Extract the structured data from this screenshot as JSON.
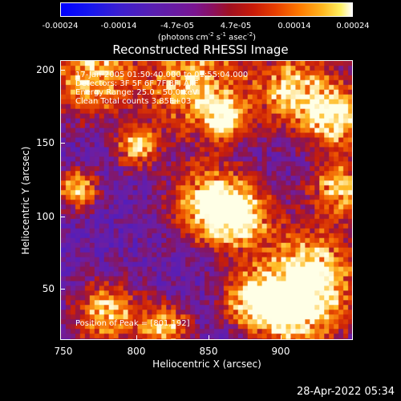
{
  "colorbar": {
    "ticks": [
      "-0.00024",
      "-0.00014",
      "-4.7e-05",
      "4.7e-05",
      "0.00014",
      "0.00024"
    ],
    "units_text": "(photons cm",
    "units_sup1": "-2",
    "units_mid1": " s",
    "units_sup2": "-1",
    "units_mid2": " asec",
    "units_sup3": "-2",
    "units_end": ")"
  },
  "plot": {
    "title": "Reconstructed RHESSI Image",
    "annotations": {
      "time_range": "17-Jan-2005 01:50:40.000 to 01:55:04.000",
      "detectors": "Detectors: 3F 5F 6F 7F 8F, AIIF",
      "energy_range": "Energy Range: 25.0 - 50.0 keV",
      "clean_info": "Clean     Total counts 3.85E+03",
      "peak_position": "Position of Peak = [801,192]"
    },
    "x_axis": {
      "label": "Heliocentric X (arcsec)",
      "ticks": [
        "750",
        "800",
        "850",
        "900"
      ],
      "range": [
        748,
        940
      ]
    },
    "y_axis": {
      "label": "Heliocentric Y (arcsec)",
      "ticks": [
        "50",
        "100",
        "150",
        "200"
      ],
      "range": [
        13,
        205
      ]
    }
  },
  "timestamp": "28-Apr-2022 05:34"
}
